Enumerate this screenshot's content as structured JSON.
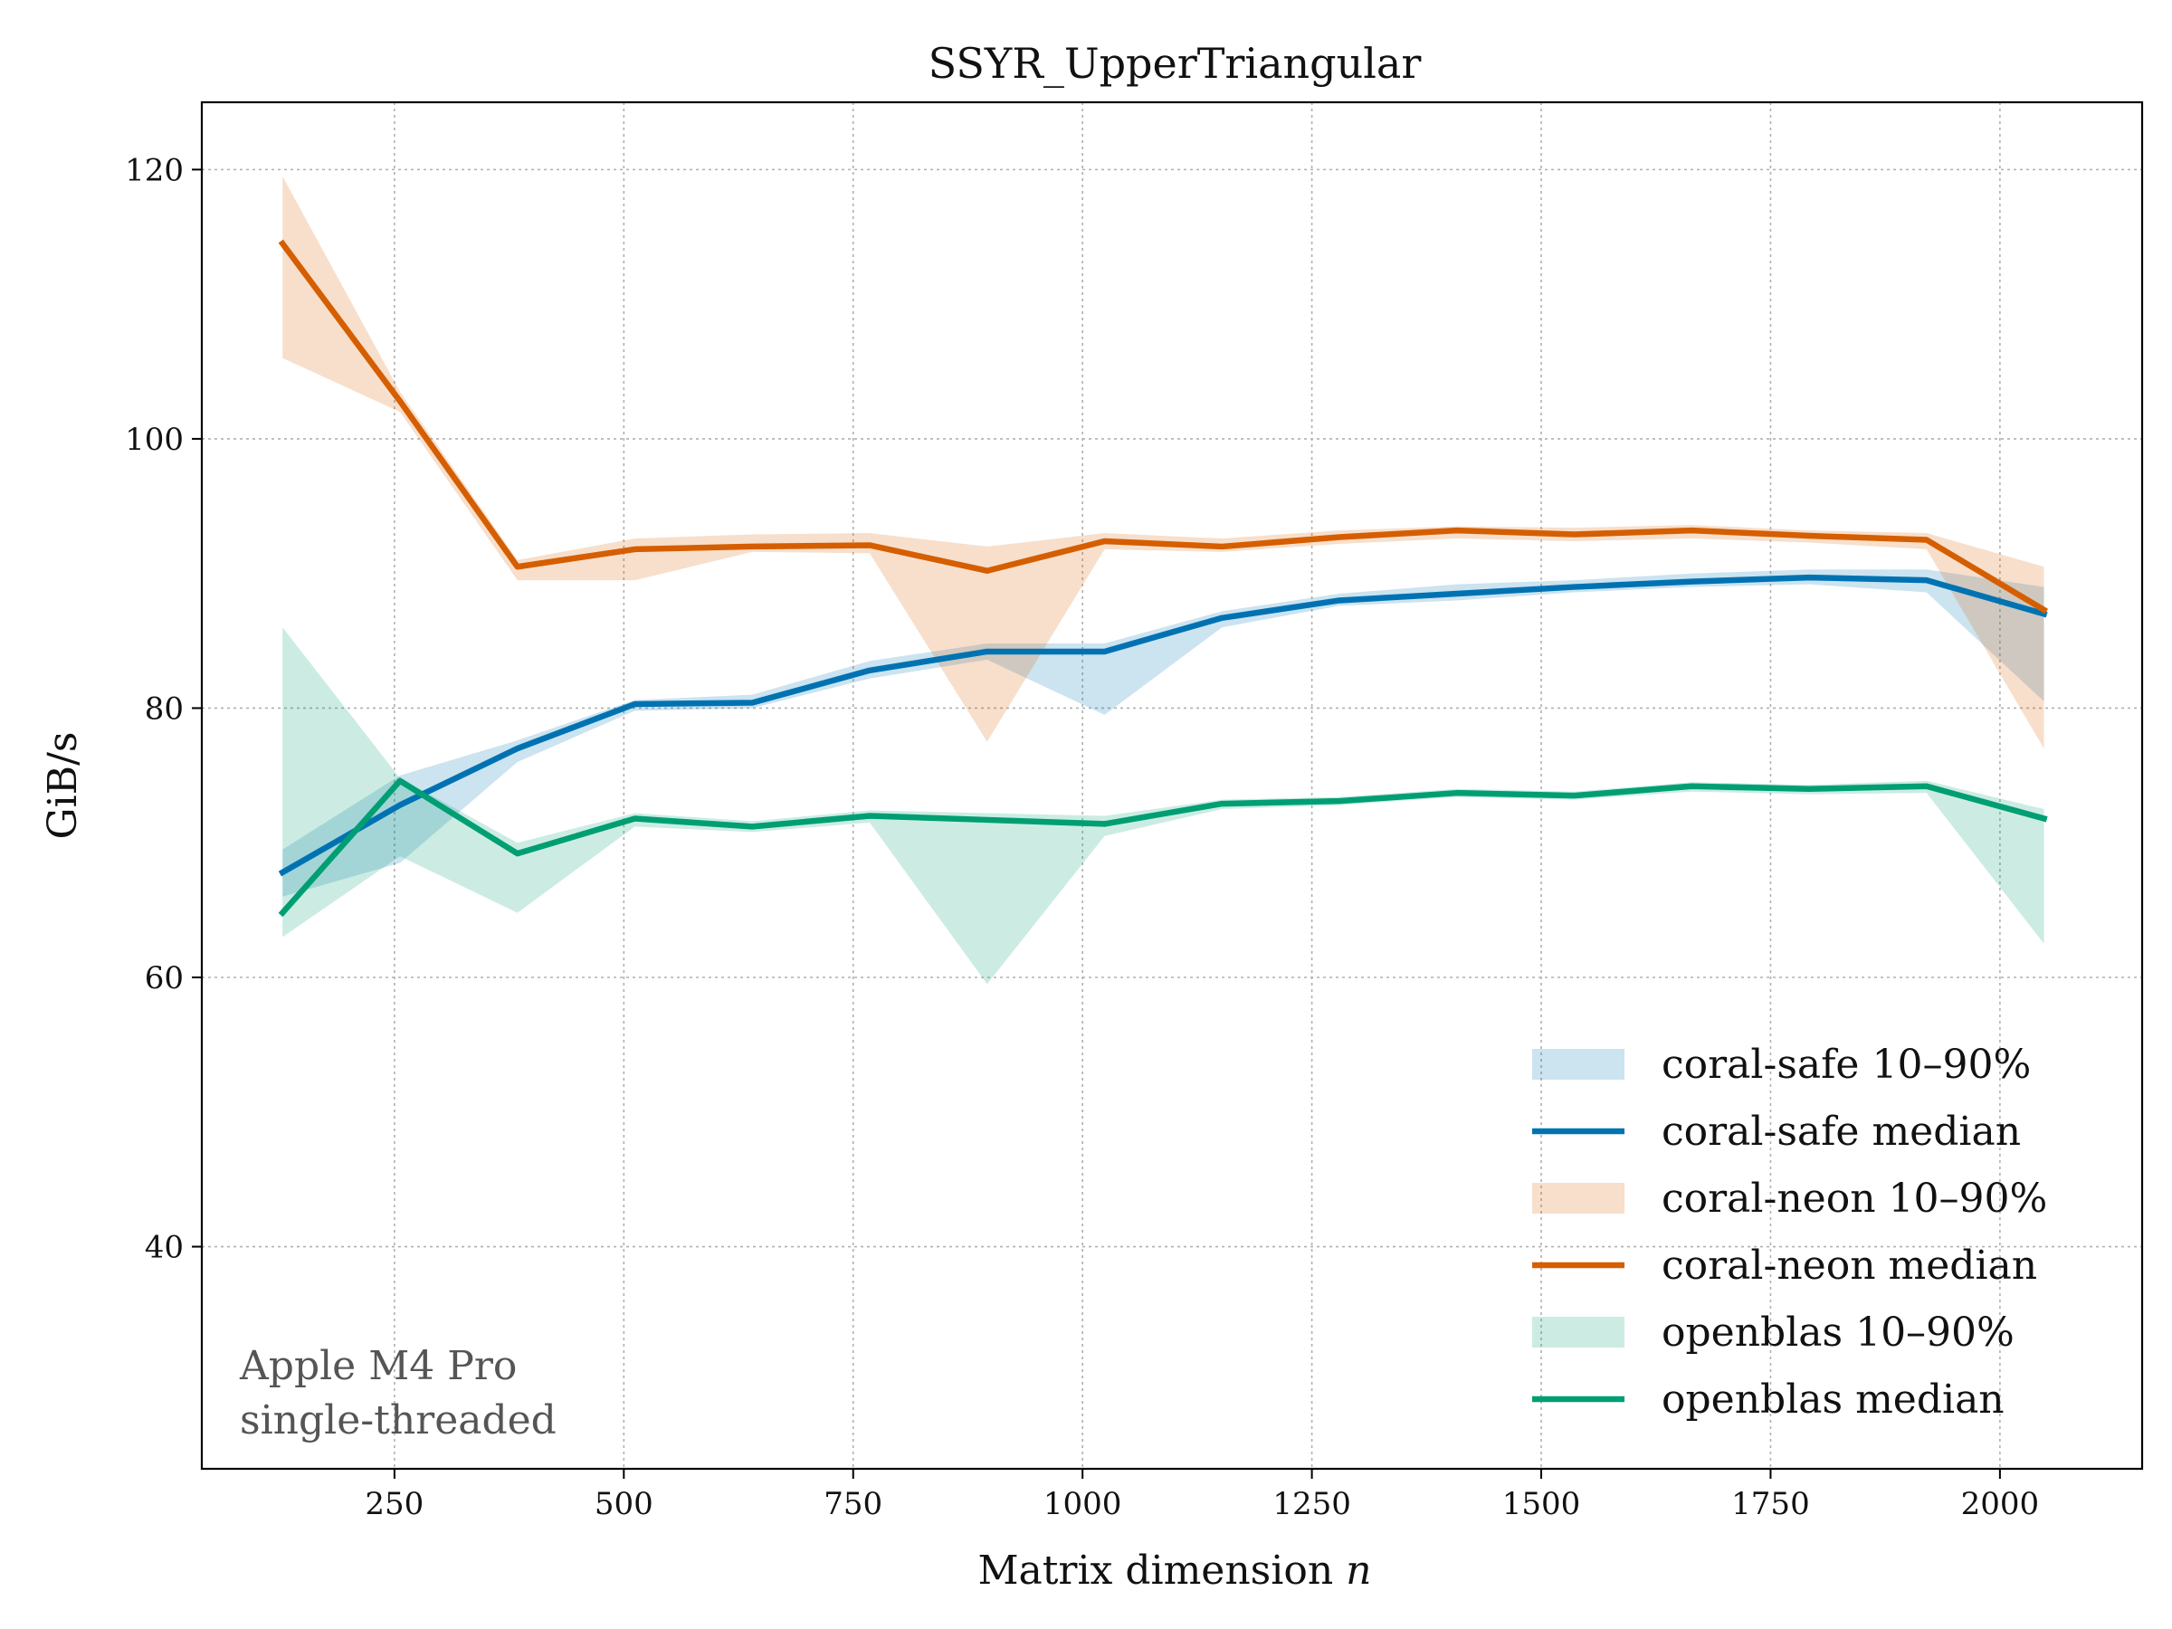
{
  "chart_data": {
    "type": "line",
    "title": "SSYR_UpperTriangular",
    "xlabel": "Matrix dimension",
    "xlabel_var": "n",
    "ylabel": "GiB/s",
    "xlim": [
      40,
      2155
    ],
    "ylim": [
      23.5,
      125
    ],
    "xticks": [
      250,
      500,
      750,
      1000,
      1250,
      1500,
      1750,
      2000
    ],
    "yticks": [
      40,
      60,
      80,
      100,
      120
    ],
    "grid": true,
    "legend_position": "lower-right",
    "annotation": [
      "Apple M4 Pro",
      "single-threaded"
    ],
    "x": [
      128,
      256,
      384,
      512,
      640,
      768,
      896,
      1024,
      1152,
      1280,
      1408,
      1536,
      1664,
      1792,
      1920,
      2048
    ],
    "series": [
      {
        "name": "coral-safe median",
        "band_label": "coral-safe 10–90%",
        "color": "#0072b2",
        "median": [
          67.8,
          72.8,
          77.0,
          80.3,
          80.4,
          82.8,
          84.2,
          84.2,
          86.7,
          88.0,
          88.5,
          89.0,
          89.4,
          89.7,
          89.5,
          87.0
        ],
        "p10": [
          66.0,
          68.5,
          76.0,
          79.8,
          80.0,
          82.2,
          83.6,
          79.5,
          86.0,
          87.6,
          88.0,
          88.6,
          89.0,
          89.2,
          88.6,
          80.5
        ],
        "p90": [
          69.5,
          75.0,
          77.6,
          80.6,
          81.0,
          83.5,
          84.8,
          84.8,
          87.2,
          88.5,
          89.2,
          89.5,
          90.0,
          90.3,
          90.3,
          89.0
        ]
      },
      {
        "name": "coral-neon median",
        "band_label": "coral-neon 10–90%",
        "color": "#d55e00",
        "median": [
          114.5,
          102.8,
          90.5,
          91.8,
          92.0,
          92.1,
          90.2,
          92.4,
          92.0,
          92.7,
          93.2,
          92.9,
          93.2,
          92.8,
          92.5,
          87.3
        ],
        "p10": [
          106.0,
          102.0,
          89.5,
          89.5,
          91.6,
          91.5,
          77.5,
          91.8,
          91.6,
          92.2,
          92.6,
          92.4,
          92.6,
          92.3,
          91.8,
          77.0
        ],
        "p90": [
          119.5,
          103.5,
          91.0,
          92.6,
          92.9,
          93.0,
          92.0,
          93.0,
          92.6,
          93.2,
          93.5,
          93.4,
          93.6,
          93.2,
          93.0,
          90.5
        ]
      },
      {
        "name": "openblas median",
        "band_label": "openblas 10–90%",
        "color": "#009e73",
        "median": [
          64.8,
          74.6,
          69.2,
          71.8,
          71.2,
          72.0,
          71.7,
          71.4,
          72.9,
          73.1,
          73.7,
          73.5,
          74.2,
          74.0,
          74.2,
          71.8
        ],
        "p10": [
          63.0,
          69.0,
          64.8,
          71.2,
          70.8,
          71.5,
          59.5,
          70.5,
          72.5,
          72.8,
          73.4,
          73.2,
          73.8,
          73.6,
          73.7,
          62.5
        ],
        "p90": [
          86.0,
          74.8,
          70.0,
          72.2,
          71.6,
          72.4,
          72.2,
          72.0,
          73.2,
          73.4,
          74.0,
          73.8,
          74.5,
          74.3,
          74.6,
          72.5
        ]
      }
    ]
  }
}
